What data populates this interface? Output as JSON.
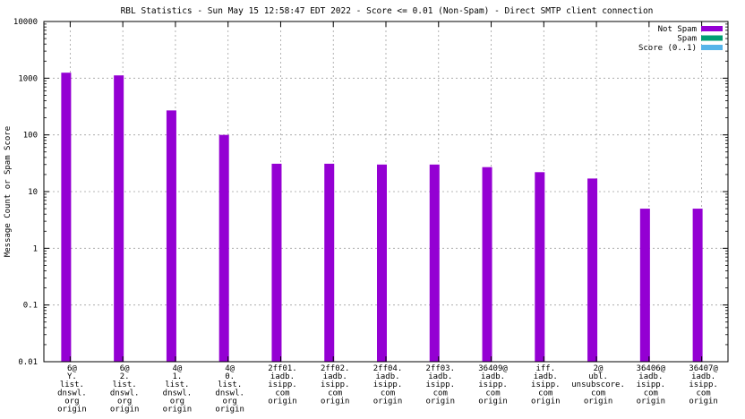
{
  "chart_data": {
    "type": "bar",
    "title": "RBL Statistics - Sun May 15 12:58:47 EDT 2022 - Score <= 0.01 (Non-Spam) - Direct SMTP client connection",
    "ylabel": "Message Count or Spam Score",
    "xlabel": "",
    "yscale": "log",
    "ylim": [
      0.01,
      10000
    ],
    "yticks": [
      "0.01",
      "0.1",
      "1",
      "10",
      "100",
      "1000",
      "10000"
    ],
    "grid": true,
    "legend_position": "top-right",
    "categories": [
      [
        "6@",
        "Y.",
        "list.",
        "dnswl.",
        "org",
        "origin"
      ],
      [
        "6@",
        "2.",
        "list.",
        "dnswl.",
        "org",
        "origin"
      ],
      [
        "4@",
        "1.",
        "list.",
        "dnswl.",
        "org",
        "origin"
      ],
      [
        "4@",
        "0.",
        "list.",
        "dnswl.",
        "org",
        "origin"
      ],
      [
        "2ff01.",
        "iadb.",
        "isipp.",
        "com",
        "origin"
      ],
      [
        "2ff02.",
        "iadb.",
        "isipp.",
        "com",
        "origin"
      ],
      [
        "2ff04.",
        "iadb.",
        "isipp.",
        "com",
        "origin"
      ],
      [
        "2ff03.",
        "iadb.",
        "isipp.",
        "com",
        "origin"
      ],
      [
        "36409@",
        "iadb.",
        "isipp.",
        "com",
        "origin"
      ],
      [
        "iff.",
        "iadb.",
        "isipp.",
        "com",
        "origin"
      ],
      [
        "2@",
        "ubl.",
        "unsubscore.",
        "com",
        "origin"
      ],
      [
        "36406@",
        "iadb.",
        "isipp.",
        "com",
        "origin"
      ],
      [
        "36407@",
        "iadb.",
        "isipp.",
        "com",
        "origin"
      ]
    ],
    "series": [
      {
        "name": "Not Spam",
        "color": "#9400d3",
        "values": [
          1250,
          1120,
          270,
          100,
          31,
          31,
          30,
          30,
          27,
          22,
          17,
          5,
          5
        ]
      },
      {
        "name": "Spam",
        "color": "#009e73",
        "values": [
          0,
          0,
          0,
          0,
          0,
          0,
          0,
          0,
          0,
          0,
          0,
          0,
          0
        ]
      },
      {
        "name": "Score (0..1)",
        "color": "#56b4e9",
        "values": [
          0,
          0,
          0,
          0,
          0,
          0,
          0,
          0,
          0,
          0,
          0,
          0,
          0
        ]
      }
    ]
  }
}
